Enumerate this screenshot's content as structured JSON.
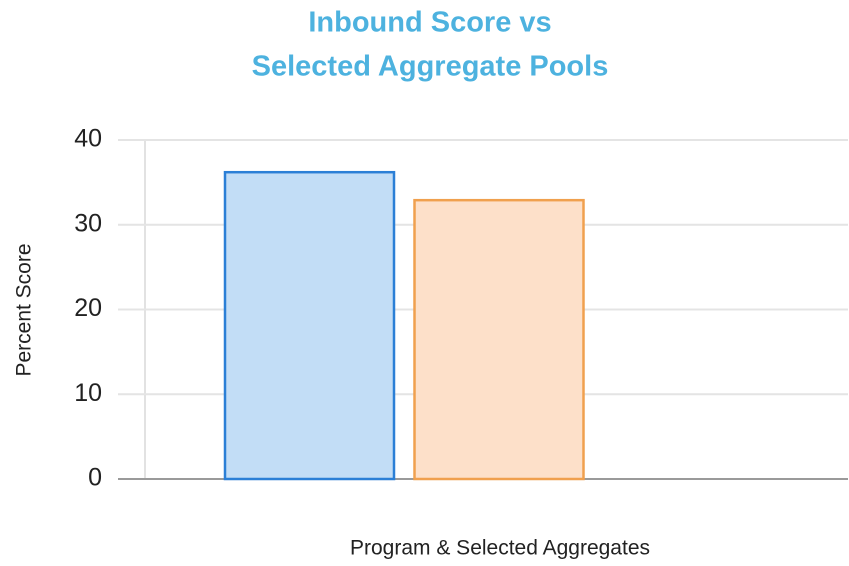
{
  "chart_data": {
    "type": "bar",
    "title": [
      "Inbound Score vs",
      "Selected Aggregate Pools"
    ],
    "x_label": "Program & Selected Aggregates",
    "y_label": "Percent Score",
    "categories": [
      null,
      null
    ],
    "values": [
      36.2,
      32.9
    ],
    "colors": [
      "#2b7fd6",
      "#f0a04e"
    ],
    "fills": [
      "#c2ddf6",
      "#fde0c9"
    ],
    "ylim": [
      0,
      40
    ],
    "yticks": [
      0,
      10,
      20,
      30,
      40
    ],
    "grid": true
  }
}
